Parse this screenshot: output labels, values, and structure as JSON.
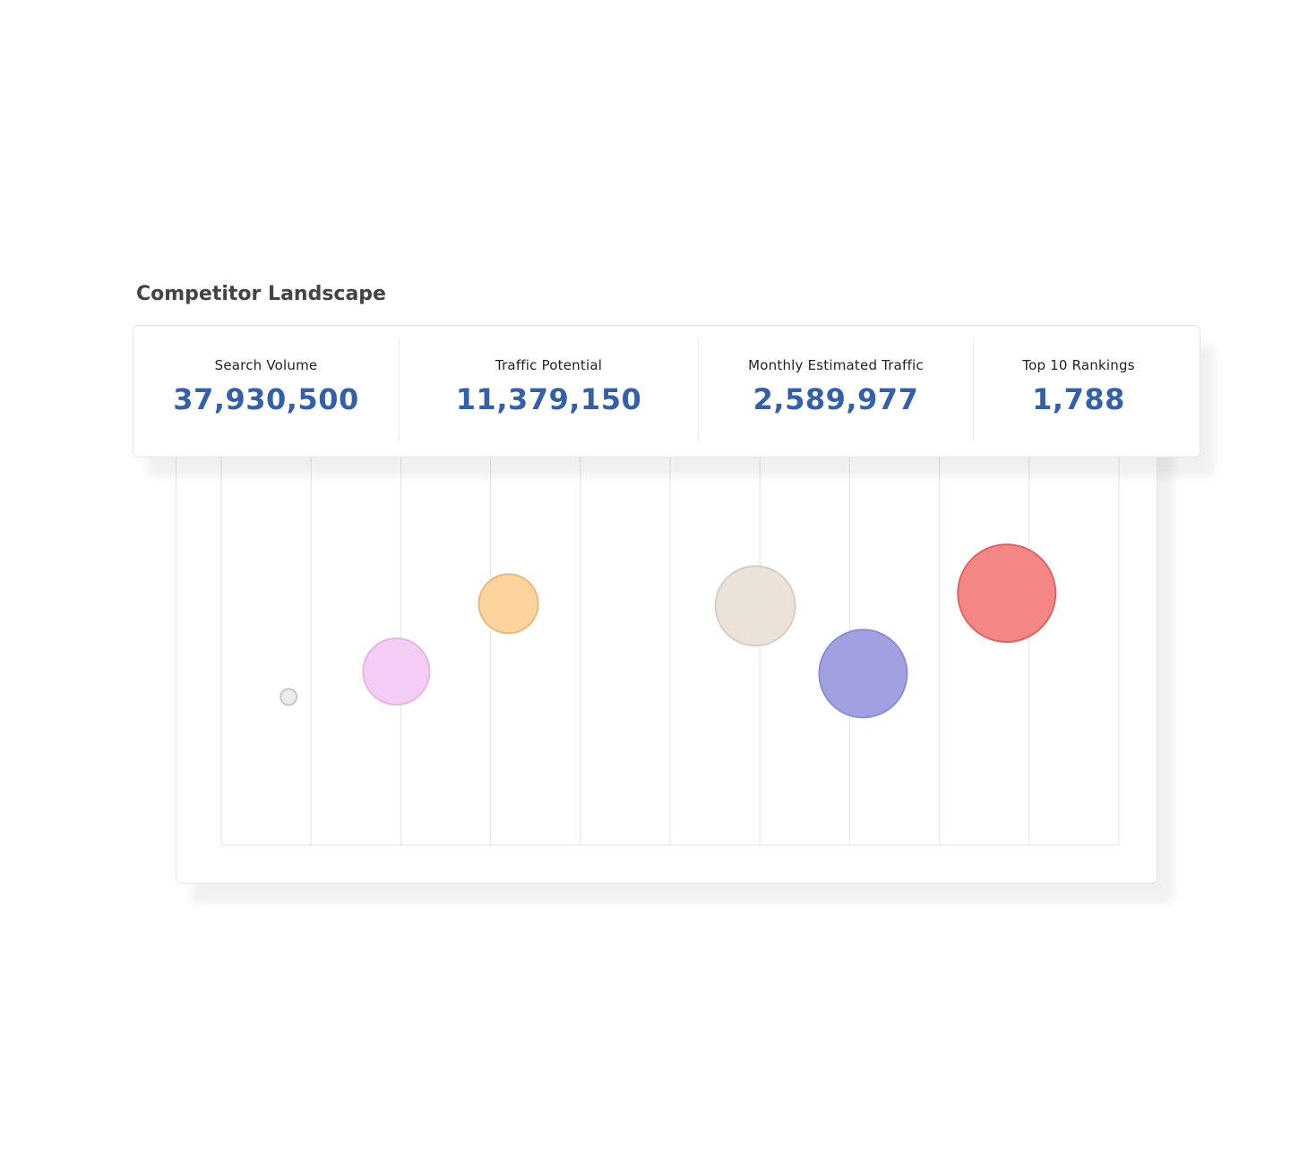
{
  "page": {
    "title": "Competitor Landscape"
  },
  "metrics": [
    {
      "label": "Search Volume",
      "value": "37,930,500"
    },
    {
      "label": "Traffic Potential",
      "value": "11,379,150"
    },
    {
      "label": "Monthly Estimated Traffic",
      "value": "2,589,977"
    },
    {
      "label": "Top 10 Rankings",
      "value": "1,788"
    }
  ],
  "colors": {
    "metric_value": "#3560a8",
    "title": "#444444",
    "gridline": "#e3e3e3"
  },
  "chart_data": {
    "type": "scatter",
    "title": "",
    "xlabel": "",
    "ylabel": "",
    "grid": "vertical",
    "xlim": [
      0,
      10
    ],
    "ylim": [
      0,
      10
    ],
    "points": [
      {
        "x": 0.75,
        "y": 3.5,
        "size": 0.9,
        "fill": "#ececec",
        "stroke": "#c8c8c8"
      },
      {
        "x": 1.95,
        "y": 4.1,
        "size": 3.7,
        "fill": "#f4cdf4",
        "stroke": "#e6b6e6"
      },
      {
        "x": 3.2,
        "y": 5.7,
        "size": 3.3,
        "fill": "#fed49e",
        "stroke": "#e6b982"
      },
      {
        "x": 5.95,
        "y": 5.65,
        "size": 4.45,
        "fill": "#ebe2da",
        "stroke": "#d8cdc4"
      },
      {
        "x": 7.15,
        "y": 4.05,
        "size": 4.9,
        "fill": "#a1a1e2",
        "stroke": "#8c8cd2"
      },
      {
        "x": 8.75,
        "y": 5.95,
        "size": 5.45,
        "fill": "#f58686",
        "stroke": "#dc6464"
      }
    ]
  }
}
